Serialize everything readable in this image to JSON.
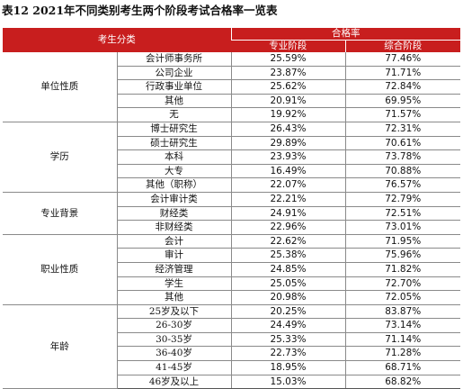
{
  "title": "表12  2021年不同类别考生两个阶段考试合格率一览表",
  "header": {
    "category": "考生分类",
    "pass_rate": "合格率",
    "stage_professional": "专业阶段",
    "stage_comprehensive": "综合阶段"
  },
  "groups": [
    {
      "name": "单位性质",
      "rows": [
        {
          "sub": "会计师事务所",
          "professional": "25.59%",
          "comprehensive": "77.46%"
        },
        {
          "sub": "公司企业",
          "professional": "23.87%",
          "comprehensive": "71.71%"
        },
        {
          "sub": "行政事业单位",
          "professional": "25.62%",
          "comprehensive": "72.84%"
        },
        {
          "sub": "其他",
          "professional": "20.91%",
          "comprehensive": "69.95%"
        },
        {
          "sub": "无",
          "professional": "19.92%",
          "comprehensive": "71.57%"
        }
      ]
    },
    {
      "name": "学历",
      "rows": [
        {
          "sub": "博士研究生",
          "professional": "26.43%",
          "comprehensive": "72.31%"
        },
        {
          "sub": "硕士研究生",
          "professional": "29.89%",
          "comprehensive": "70.61%"
        },
        {
          "sub": "本科",
          "professional": "23.93%",
          "comprehensive": "73.78%"
        },
        {
          "sub": "大专",
          "professional": "16.49%",
          "comprehensive": "70.88%"
        },
        {
          "sub": "其他（职称）",
          "professional": "22.07%",
          "comprehensive": "76.57%"
        }
      ]
    },
    {
      "name": "专业背景",
      "rows": [
        {
          "sub": "会计审计类",
          "professional": "22.21%",
          "comprehensive": "72.79%"
        },
        {
          "sub": "财经类",
          "professional": "24.91%",
          "comprehensive": "72.51%"
        },
        {
          "sub": "非财经类",
          "professional": "22.96%",
          "comprehensive": "73.01%"
        }
      ]
    },
    {
      "name": "职业性质",
      "rows": [
        {
          "sub": "会计",
          "professional": "22.62%",
          "comprehensive": "71.95%"
        },
        {
          "sub": "审计",
          "professional": "25.38%",
          "comprehensive": "75.96%"
        },
        {
          "sub": "经济管理",
          "professional": "24.85%",
          "comprehensive": "71.82%"
        },
        {
          "sub": "学生",
          "professional": "25.05%",
          "comprehensive": "72.70%"
        },
        {
          "sub": "其他",
          "professional": "20.98%",
          "comprehensive": "72.05%"
        }
      ]
    },
    {
      "name": "年龄",
      "rows": [
        {
          "sub": "25岁及以下",
          "professional": "20.25%",
          "comprehensive": "83.87%"
        },
        {
          "sub": "26-30岁",
          "professional": "24.49%",
          "comprehensive": "73.14%"
        },
        {
          "sub": "30-35岁",
          "professional": "25.33%",
          "comprehensive": "71.14%"
        },
        {
          "sub": "36-40岁",
          "professional": "22.73%",
          "comprehensive": "71.28%"
        },
        {
          "sub": "41-45岁",
          "professional": "18.95%",
          "comprehensive": "68.71%"
        },
        {
          "sub": "46岁及以上",
          "professional": "15.03%",
          "comprehensive": "68.82%"
        }
      ]
    }
  ]
}
